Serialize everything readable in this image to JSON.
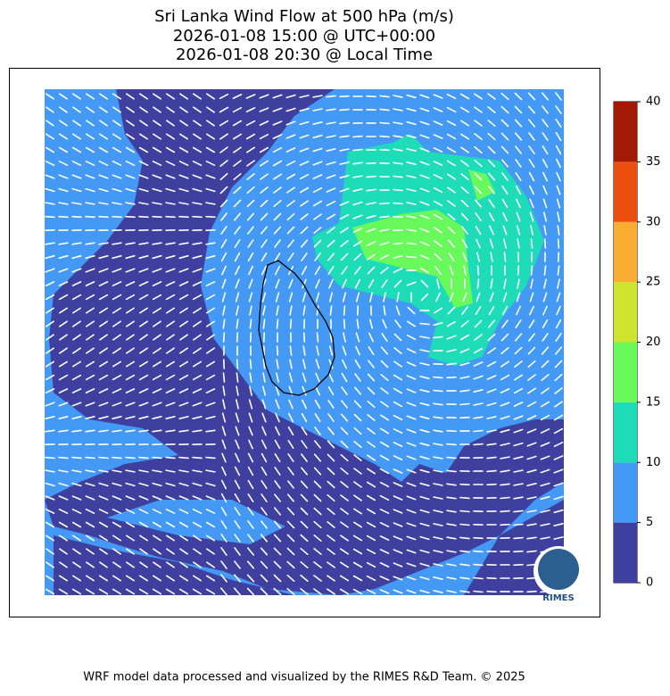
{
  "title": [
    "Sri Lanka Wind Flow at 500 hPa (m/s)",
    "2026-01-08 15:00 @ UTC+00:00",
    "2026-01-08 20:30 @ Local Time"
  ],
  "colorbar": {
    "levels": [
      0,
      5,
      10,
      15,
      20,
      25,
      30,
      35,
      40
    ],
    "colors": [
      "#3e3f9e",
      "#4499f5",
      "#1fdcb8",
      "#68f95a",
      "#cde52f",
      "#f9ae33",
      "#ec5010",
      "#a31a04"
    ]
  },
  "logo": "RIMES",
  "footer": "WRF model data processed and visualized by the RIMES R&D Team. © 2025"
}
